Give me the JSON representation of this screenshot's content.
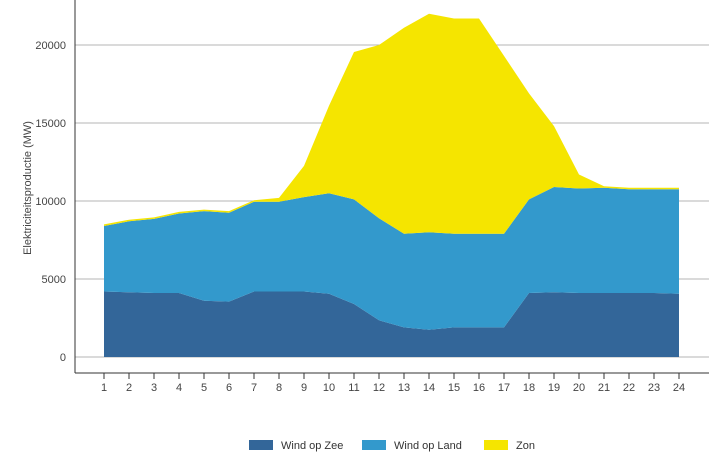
{
  "chart_data": {
    "type": "area",
    "stacked": true,
    "title": "",
    "xlabel": "",
    "ylabel": "Elektriciteitsproductie (MW)",
    "x": [
      1,
      2,
      3,
      4,
      5,
      6,
      7,
      8,
      9,
      10,
      11,
      12,
      13,
      14,
      15,
      16,
      17,
      18,
      19,
      20,
      21,
      22,
      23,
      24
    ],
    "ylim": [
      0,
      22000
    ],
    "yticks": [
      0,
      5000,
      10000,
      15000,
      20000
    ],
    "grid": true,
    "legend_position": "bottom",
    "series": [
      {
        "name": "Wind op Zee",
        "color": "#336699",
        "values": [
          4200,
          4150,
          4100,
          4100,
          3600,
          3550,
          4200,
          4200,
          4200,
          4050,
          3400,
          2350,
          1900,
          1750,
          1900,
          1900,
          1900,
          4100,
          4150,
          4100,
          4100,
          4100,
          4100,
          4050
        ]
      },
      {
        "name": "Wind op Land",
        "color": "#3399cc",
        "values": [
          4200,
          4550,
          4750,
          5100,
          5750,
          5700,
          5750,
          5750,
          6050,
          6450,
          6700,
          6550,
          6000,
          6250,
          6000,
          6000,
          6000,
          6000,
          6750,
          6700,
          6750,
          6650,
          6650,
          6700
        ]
      },
      {
        "name": "Zon",
        "color": "#f5e500",
        "values": [
          100,
          100,
          100,
          100,
          100,
          100,
          100,
          250,
          2000,
          5600,
          9450,
          11100,
          13200,
          14000,
          13800,
          13800,
          11400,
          6800,
          3900,
          900,
          100,
          100,
          100,
          100
        ]
      }
    ]
  }
}
